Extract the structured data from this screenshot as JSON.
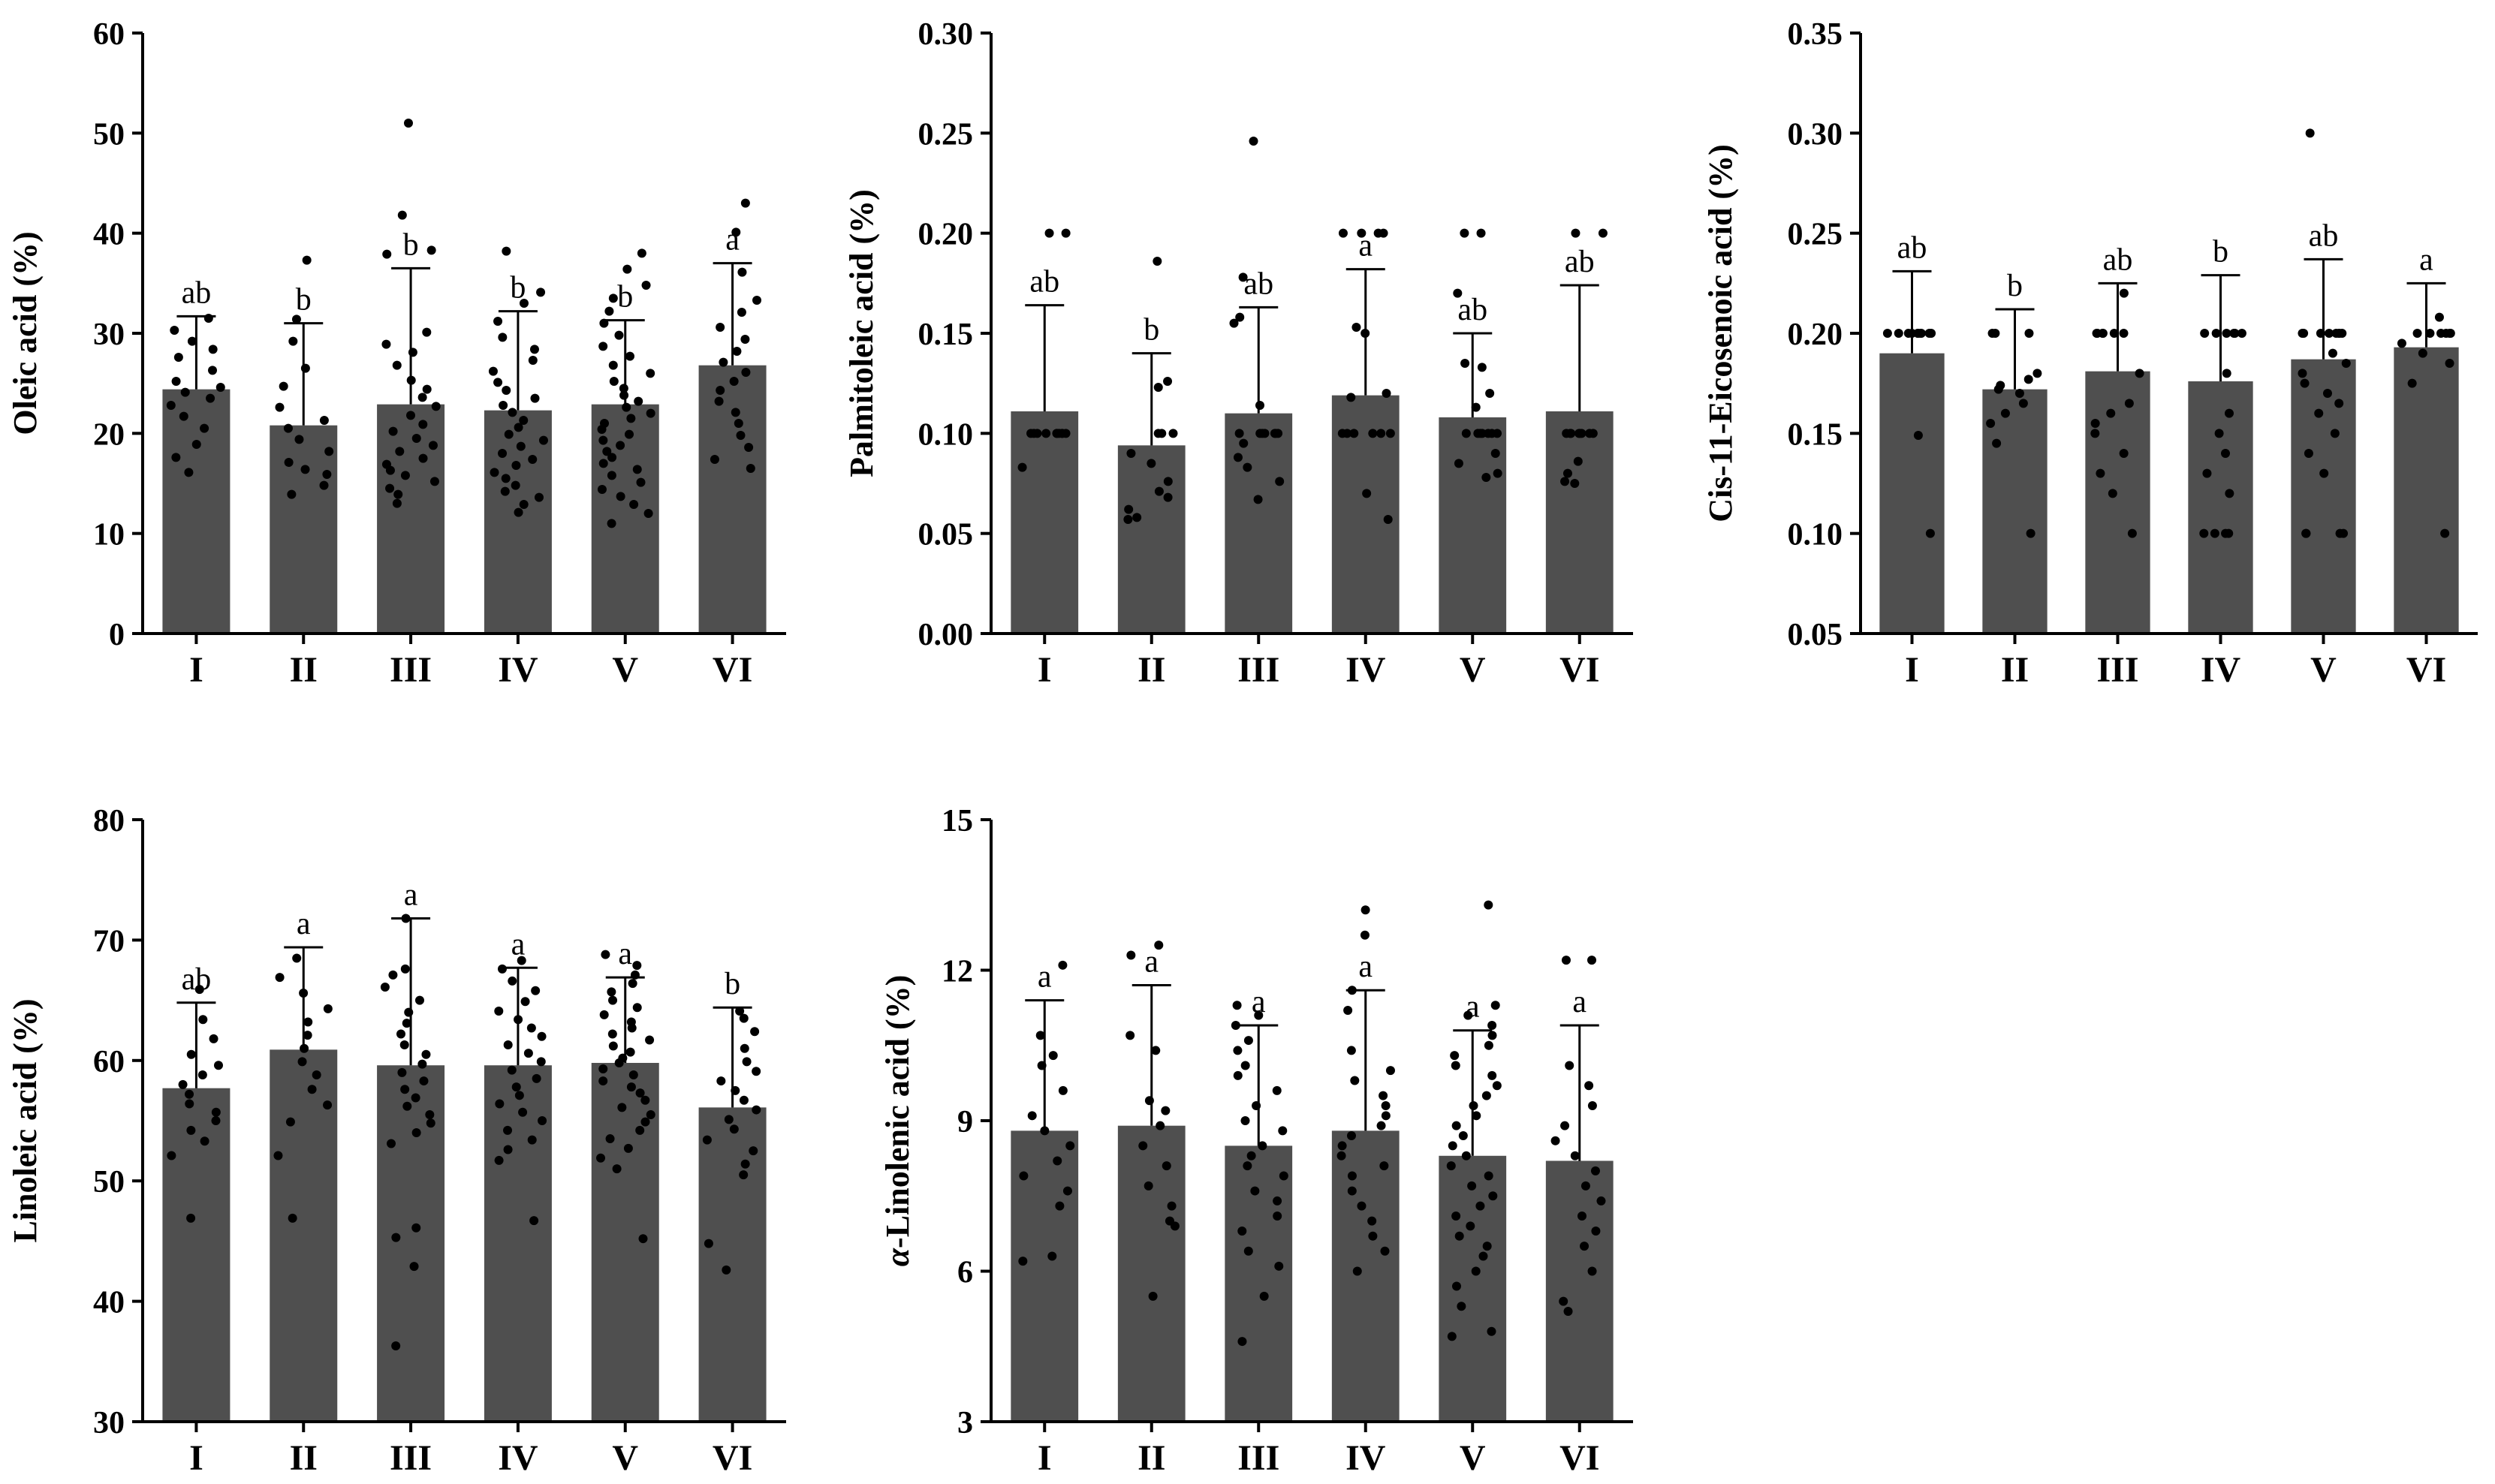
{
  "chart_data": [
    {
      "type": "bar",
      "ylabel": "Oleic acid (%)",
      "categories": [
        "I",
        "II",
        "III",
        "IV",
        "V",
        "VI"
      ],
      "ylim": [
        0,
        60
      ],
      "yticks": [
        0,
        10,
        20,
        30,
        40,
        50,
        60
      ],
      "tick_labels": [
        "0",
        "10",
        "20",
        "30",
        "40",
        "50",
        "60"
      ],
      "values": [
        24.4,
        20.8,
        22.9,
        22.3,
        22.9,
        26.8
      ],
      "errors": [
        7.3,
        10.2,
        13.6,
        9.9,
        8.4,
        10.2
      ],
      "letters": [
        "ab",
        "b",
        "b",
        "b",
        "b",
        "a"
      ],
      "points": [
        [
          31.5,
          30.3,
          29.2,
          28.4,
          27.6,
          26.3,
          25.2,
          24.6,
          24.1,
          23.5,
          22.8,
          21.7,
          20.5,
          18.9,
          17.6,
          16.1
        ],
        [
          37.3,
          31.4,
          29.2,
          26.5,
          24.7,
          22.6,
          21.3,
          20.5,
          19.4,
          18.2,
          17.1,
          16.4,
          15.9,
          14.8,
          13.9
        ],
        [
          51.0,
          41.8,
          38.3,
          37.9,
          30.1,
          28.9,
          28.1,
          26.8,
          25.3,
          24.4,
          23.6,
          22.7,
          21.8,
          20.9,
          20.2,
          19.5,
          18.8,
          18.2,
          17.5,
          16.9,
          16.3,
          15.8,
          15.2,
          14.5,
          13.9,
          13.0
        ],
        [
          38.2,
          34.1,
          33.0,
          31.2,
          29.6,
          28.4,
          27.3,
          26.2,
          25.1,
          24.3,
          23.5,
          22.8,
          22.1,
          21.3,
          20.6,
          19.9,
          19.3,
          18.7,
          18.0,
          17.4,
          16.8,
          16.1,
          15.5,
          14.8,
          14.2,
          13.6,
          12.9,
          12.1
        ],
        [
          38.0,
          36.4,
          34.8,
          33.5,
          32.2,
          31.0,
          29.8,
          28.7,
          27.7,
          26.8,
          26.0,
          25.2,
          24.5,
          23.8,
          23.2,
          22.6,
          22.0,
          21.5,
          21.0,
          20.4,
          19.9,
          19.3,
          18.8,
          18.2,
          17.6,
          17.0,
          16.4,
          15.8,
          15.1,
          14.4,
          13.7,
          12.9,
          12.0,
          11.0
        ],
        [
          43.0,
          40.1,
          36.1,
          33.3,
          32.1,
          30.6,
          29.4,
          28.2,
          27.1,
          26.1,
          25.2,
          24.3,
          23.2,
          22.1,
          21.0,
          19.8,
          18.6,
          17.4,
          16.5
        ]
      ]
    },
    {
      "type": "bar",
      "ylabel": "Palmitoleic acid (%)",
      "categories": [
        "I",
        "II",
        "III",
        "IV",
        "V",
        "VI"
      ],
      "ylim": [
        0,
        0.3
      ],
      "yticks": [
        0,
        0.05,
        0.1,
        0.15,
        0.2,
        0.25,
        0.3
      ],
      "tick_labels": [
        "0.00",
        "0.05",
        "0.10",
        "0.15",
        "0.20",
        "0.25",
        "0.30"
      ],
      "values": [
        0.111,
        0.094,
        0.11,
        0.119,
        0.108,
        0.111
      ],
      "errors": [
        0.053,
        0.046,
        0.053,
        0.063,
        0.042,
        0.063
      ],
      "letters": [
        "ab",
        "b",
        "ab",
        "a",
        "ab",
        "ab"
      ],
      "points": [
        [
          0.2,
          0.2,
          0.1,
          0.1,
          0.1,
          0.1,
          0.1,
          0.1,
          0.1,
          0.1,
          0.1,
          0.1,
          0.083
        ],
        [
          0.186,
          0.126,
          0.123,
          0.1,
          0.1,
          0.1,
          0.09,
          0.085,
          0.076,
          0.071,
          0.068,
          0.062,
          0.058,
          0.057
        ],
        [
          0.246,
          0.178,
          0.158,
          0.155,
          0.114,
          0.1,
          0.1,
          0.1,
          0.1,
          0.1,
          0.1,
          0.1,
          0.095,
          0.088,
          0.083,
          0.076,
          0.067
        ],
        [
          0.2,
          0.2,
          0.2,
          0.2,
          0.153,
          0.15,
          0.12,
          0.118,
          0.1,
          0.1,
          0.1,
          0.1,
          0.1,
          0.1,
          0.07,
          0.057
        ],
        [
          0.2,
          0.2,
          0.17,
          0.135,
          0.133,
          0.12,
          0.113,
          0.1,
          0.1,
          0.1,
          0.1,
          0.1,
          0.1,
          0.1,
          0.09,
          0.085,
          0.08,
          0.078
        ],
        [
          0.2,
          0.2,
          0.1,
          0.1,
          0.1,
          0.1,
          0.1,
          0.1,
          0.1,
          0.1,
          0.086,
          0.08,
          0.076,
          0.075
        ]
      ]
    },
    {
      "type": "bar",
      "ylabel": "Cis-11-Eicosenoic acid (%)",
      "categories": [
        "I",
        "II",
        "III",
        "IV",
        "V",
        "VI"
      ],
      "ylim": [
        0.05,
        0.35
      ],
      "yticks": [
        0.05,
        0.1,
        0.15,
        0.2,
        0.25,
        0.3,
        0.35
      ],
      "tick_labels": [
        "0.05",
        "0.10",
        "0.15",
        "0.20",
        "0.25",
        "0.30",
        "0.35"
      ],
      "values": [
        0.19,
        0.172,
        0.181,
        0.176,
        0.187,
        0.193
      ],
      "errors": [
        0.041,
        0.04,
        0.044,
        0.053,
        0.05,
        0.032
      ],
      "letters": [
        "ab",
        "b",
        "ab",
        "b",
        "ab",
        "a"
      ],
      "points": [
        [
          0.2,
          0.2,
          0.2,
          0.2,
          0.2,
          0.2,
          0.2,
          0.2,
          0.2,
          0.2,
          0.149,
          0.1
        ],
        [
          0.2,
          0.2,
          0.2,
          0.18,
          0.177,
          0.174,
          0.172,
          0.17,
          0.165,
          0.16,
          0.155,
          0.145,
          0.1
        ],
        [
          0.22,
          0.2,
          0.2,
          0.2,
          0.2,
          0.2,
          0.2,
          0.18,
          0.165,
          0.16,
          0.155,
          0.15,
          0.14,
          0.13,
          0.12,
          0.1
        ],
        [
          0.2,
          0.2,
          0.2,
          0.2,
          0.2,
          0.2,
          0.18,
          0.16,
          0.15,
          0.14,
          0.13,
          0.12,
          0.1,
          0.1,
          0.1,
          0.1
        ],
        [
          0.3,
          0.2,
          0.2,
          0.2,
          0.2,
          0.2,
          0.2,
          0.2,
          0.2,
          0.19,
          0.185,
          0.18,
          0.175,
          0.17,
          0.165,
          0.16,
          0.15,
          0.14,
          0.13,
          0.1,
          0.1,
          0.1,
          0.1
        ],
        [
          0.208,
          0.2,
          0.2,
          0.2,
          0.2,
          0.2,
          0.2,
          0.195,
          0.19,
          0.185,
          0.175,
          0.1
        ]
      ]
    },
    {
      "type": "bar",
      "ylabel": "Linoleic acid (%)",
      "categories": [
        "I",
        "II",
        "III",
        "IV",
        "V",
        "VI"
      ],
      "ylim": [
        30,
        80
      ],
      "yticks": [
        30,
        40,
        50,
        60,
        70,
        80
      ],
      "tick_labels": [
        "30",
        "40",
        "50",
        "60",
        "70",
        "80"
      ],
      "values": [
        57.7,
        60.9,
        59.6,
        59.6,
        59.8,
        56.1
      ],
      "errors": [
        7.1,
        8.5,
        12.2,
        8.1,
        7.1,
        8.3
      ],
      "letters": [
        "ab",
        "a",
        "a",
        "a",
        "a",
        "b"
      ],
      "points": [
        [
          65.9,
          63.4,
          61.8,
          60.5,
          59.6,
          58.8,
          58.0,
          57.2,
          56.4,
          55.7,
          55.0,
          54.2,
          53.3,
          52.1,
          46.9
        ],
        [
          68.5,
          66.9,
          65.6,
          64.3,
          63.2,
          62.1,
          61.0,
          59.9,
          58.8,
          57.6,
          56.3,
          54.9,
          52.1,
          46.9
        ],
        [
          71.8,
          67.6,
          67.1,
          66.1,
          65.0,
          64.0,
          63.1,
          62.2,
          61.3,
          60.5,
          59.7,
          59.0,
          58.3,
          57.6,
          56.9,
          56.2,
          55.5,
          54.8,
          54.0,
          53.1,
          46.1,
          45.3,
          42.9,
          36.3
        ],
        [
          68.3,
          67.6,
          66.6,
          65.8,
          64.9,
          64.1,
          63.4,
          62.7,
          62.0,
          61.3,
          60.6,
          59.9,
          59.2,
          58.5,
          57.8,
          57.1,
          56.4,
          55.7,
          55.0,
          54.2,
          53.4,
          52.6,
          51.7,
          46.7
        ],
        [
          68.8,
          67.9,
          67.1,
          66.4,
          65.7,
          65.0,
          64.4,
          63.8,
          63.2,
          62.7,
          62.2,
          61.7,
          61.2,
          60.7,
          60.2,
          59.8,
          59.3,
          58.8,
          58.3,
          57.8,
          57.3,
          56.7,
          56.1,
          55.5,
          54.9,
          54.2,
          53.5,
          52.7,
          51.9,
          51.0,
          45.2
        ],
        [
          64.1,
          63.5,
          62.4,
          61.0,
          59.9,
          59.1,
          58.3,
          57.5,
          56.7,
          55.9,
          55.1,
          54.3,
          53.4,
          52.5,
          51.4,
          50.5,
          44.8,
          42.6
        ]
      ]
    },
    {
      "type": "bar",
      "ylabel": "α-Linolenic acid (%)",
      "ylabel_italic_prefix": "α",
      "ylabel_rest": "-Linolenic acid (%)",
      "categories": [
        "I",
        "II",
        "III",
        "IV",
        "V",
        "VI"
      ],
      "ylim": [
        3,
        15
      ],
      "yticks": [
        3,
        6,
        9,
        12,
        15
      ],
      "tick_labels": [
        "3",
        "6",
        "9",
        "12",
        "15"
      ],
      "values": [
        8.8,
        8.9,
        8.5,
        8.8,
        8.3,
        8.2
      ],
      "errors": [
        2.6,
        2.8,
        2.4,
        2.8,
        2.5,
        2.7
      ],
      "letters": [
        "a",
        "a",
        "a",
        "a",
        "a",
        "a"
      ],
      "points": [
        [
          12.1,
          10.7,
          10.3,
          10.1,
          9.6,
          9.1,
          8.8,
          8.5,
          8.2,
          7.9,
          7.6,
          7.3,
          6.3,
          6.2
        ],
        [
          12.5,
          12.3,
          10.7,
          10.4,
          9.4,
          9.2,
          8.9,
          8.5,
          8.1,
          7.7,
          7.3,
          7.0,
          6.9,
          5.5
        ],
        [
          11.3,
          11.1,
          10.9,
          10.6,
          10.4,
          10.1,
          9.9,
          9.6,
          9.3,
          9.0,
          8.8,
          8.5,
          8.3,
          8.1,
          7.9,
          7.6,
          7.4,
          7.1,
          6.8,
          6.4,
          6.1,
          5.5,
          4.6
        ],
        [
          13.2,
          12.7,
          11.6,
          11.2,
          10.4,
          10.0,
          9.8,
          9.5,
          9.3,
          9.1,
          8.9,
          8.7,
          8.5,
          8.3,
          8.1,
          7.9,
          7.6,
          7.3,
          7.0,
          6.7,
          6.4,
          6.0
        ],
        [
          13.3,
          11.3,
          11.1,
          10.9,
          10.7,
          10.5,
          10.3,
          10.1,
          9.9,
          9.7,
          9.5,
          9.3,
          9.1,
          8.9,
          8.7,
          8.5,
          8.3,
          8.1,
          7.9,
          7.7,
          7.5,
          7.3,
          7.1,
          6.9,
          6.7,
          6.5,
          6.3,
          6.0,
          5.7,
          5.3,
          4.8,
          4.7
        ],
        [
          12.2,
          12.2,
          10.1,
          9.7,
          9.3,
          8.9,
          8.6,
          8.3,
          8.0,
          7.7,
          7.4,
          7.1,
          6.8,
          6.5,
          6.0,
          5.4,
          5.2
        ]
      ]
    }
  ]
}
